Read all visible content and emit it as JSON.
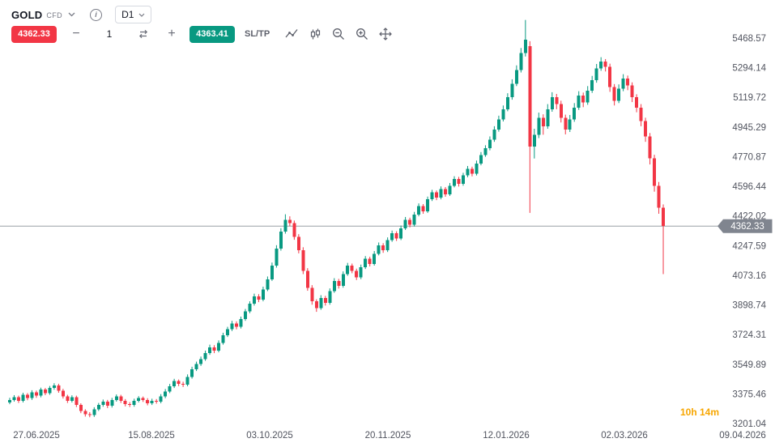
{
  "header": {
    "symbol": "GOLD",
    "instrument_type": "CFD",
    "timeframe": "D1"
  },
  "order_panel": {
    "sell_price": "4362.33",
    "buy_price": "4363.41",
    "quantity": "1",
    "sl_tp_label": "SL/TP",
    "minus_label": "−",
    "plus_label": "+"
  },
  "icons": {
    "info": "i",
    "names": [
      "chevron-down-icon",
      "info-icon",
      "swap-icon",
      "line-chart-icon",
      "candlestick-icon",
      "zoom-out-icon",
      "zoom-in-icon",
      "move-icon"
    ]
  },
  "theme": {
    "up": "#089981",
    "down": "#f23645",
    "sell_bg": "#f23645",
    "buy_bg": "#089981",
    "price_line": "#9aa0a6",
    "price_badge_bg": "#80858f",
    "timer": "#f7a600",
    "axis_text": "#50535e"
  },
  "chart_data": {
    "type": "candlestick",
    "symbol": "GOLD CFD",
    "timeframe": "D1",
    "current_price": 4362.33,
    "current_price_label": "4362.33",
    "candle_countdown": "10h 14m",
    "price_range": {
      "top": 5468.57,
      "bottom": 3201.04
    },
    "y_axis_labels": [
      "5468.57",
      "5294.14",
      "5119.72",
      "4945.29",
      "4770.87",
      "4596.44",
      "4422.02",
      "4247.59",
      "4073.16",
      "3898.74",
      "3724.31",
      "3549.89",
      "3375.46",
      "3201.04"
    ],
    "x_axis_labels": [
      "27.06.2025",
      "15.08.2025",
      "03.10.2025",
      "20.11.2025",
      "12.01.2026",
      "02.03.2026",
      "09.04.2026"
    ],
    "candles": [
      [
        3325,
        3352,
        3315,
        3340
      ],
      [
        3340,
        3368,
        3330,
        3355
      ],
      [
        3355,
        3365,
        3322,
        3335
      ],
      [
        3335,
        3382,
        3325,
        3370
      ],
      [
        3370,
        3380,
        3338,
        3350
      ],
      [
        3350,
        3397,
        3340,
        3385
      ],
      [
        3385,
        3395,
        3352,
        3365
      ],
      [
        3365,
        3412,
        3355,
        3400
      ],
      [
        3400,
        3410,
        3368,
        3380
      ],
      [
        3380,
        3422,
        3370,
        3410
      ],
      [
        3410,
        3438,
        3400,
        3425
      ],
      [
        3425,
        3435,
        3382,
        3395
      ],
      [
        3395,
        3405,
        3348,
        3360
      ],
      [
        3360,
        3370,
        3322,
        3335
      ],
      [
        3335,
        3367,
        3325,
        3355
      ],
      [
        3355,
        3365,
        3298,
        3310
      ],
      [
        3310,
        3320,
        3262,
        3275
      ],
      [
        3275,
        3285,
        3242,
        3255
      ],
      [
        3255,
        3268,
        3238,
        3250
      ],
      [
        3250,
        3297,
        3240,
        3285
      ],
      [
        3285,
        3322,
        3275,
        3310
      ],
      [
        3310,
        3342,
        3300,
        3330
      ],
      [
        3330,
        3340,
        3292,
        3305
      ],
      [
        3305,
        3352,
        3295,
        3340
      ],
      [
        3340,
        3372,
        3330,
        3360
      ],
      [
        3360,
        3370,
        3322,
        3335
      ],
      [
        3335,
        3345,
        3302,
        3315
      ],
      [
        3315,
        3327,
        3298,
        3310
      ],
      [
        3310,
        3347,
        3300,
        3335
      ],
      [
        3335,
        3362,
        3325,
        3350
      ],
      [
        3350,
        3360,
        3328,
        3340
      ],
      [
        3340,
        3350,
        3308,
        3320
      ],
      [
        3320,
        3347,
        3310,
        3335
      ],
      [
        3335,
        3345,
        3318,
        3330
      ],
      [
        3330,
        3374,
        3320,
        3360
      ],
      [
        3360,
        3404,
        3350,
        3390
      ],
      [
        3390,
        3434,
        3380,
        3420
      ],
      [
        3420,
        3464,
        3410,
        3450
      ],
      [
        3450,
        3460,
        3421,
        3435
      ],
      [
        3435,
        3447,
        3416,
        3430
      ],
      [
        3430,
        3490,
        3420,
        3475
      ],
      [
        3475,
        3535,
        3465,
        3520
      ],
      [
        3520,
        3565,
        3510,
        3550
      ],
      [
        3550,
        3595,
        3540,
        3580
      ],
      [
        3580,
        3630,
        3570,
        3615
      ],
      [
        3615,
        3665,
        3605,
        3650
      ],
      [
        3650,
        3662,
        3615,
        3630
      ],
      [
        3630,
        3690,
        3620,
        3675
      ],
      [
        3675,
        3735,
        3665,
        3720
      ],
      [
        3720,
        3770,
        3710,
        3755
      ],
      [
        3755,
        3805,
        3745,
        3790
      ],
      [
        3790,
        3802,
        3755,
        3770
      ],
      [
        3770,
        3830,
        3760,
        3815
      ],
      [
        3815,
        3875,
        3805,
        3860
      ],
      [
        3860,
        3920,
        3850,
        3905
      ],
      [
        3905,
        3965,
        3895,
        3950
      ],
      [
        3950,
        3962,
        3915,
        3930
      ],
      [
        3930,
        4006,
        3920,
        3990
      ],
      [
        3990,
        4066,
        3980,
        4050
      ],
      [
        4050,
        4148,
        4040,
        4130
      ],
      [
        4130,
        4250,
        4118,
        4230
      ],
      [
        4230,
        4350,
        4218,
        4330
      ],
      [
        4330,
        4432,
        4318,
        4400
      ],
      [
        4400,
        4420,
        4362,
        4380
      ],
      [
        4380,
        4395,
        4282,
        4300
      ],
      [
        4300,
        4315,
        4202,
        4220
      ],
      [
        4220,
        4238,
        4080,
        4100
      ],
      [
        4100,
        4115,
        3982,
        4000
      ],
      [
        4000,
        4015,
        3900,
        3920
      ],
      [
        3920,
        3932,
        3858,
        3880
      ],
      [
        3880,
        3956,
        3870,
        3940
      ],
      [
        3940,
        3952,
        3895,
        3910
      ],
      [
        3910,
        3996,
        3900,
        3980
      ],
      [
        3980,
        4056,
        3970,
        4040
      ],
      [
        4040,
        4052,
        3995,
        4010
      ],
      [
        4010,
        4096,
        4000,
        4080
      ],
      [
        4080,
        4146,
        4070,
        4130
      ],
      [
        4130,
        4142,
        4085,
        4100
      ],
      [
        4100,
        4112,
        4045,
        4060
      ],
      [
        4060,
        4136,
        4050,
        4120
      ],
      [
        4120,
        4186,
        4110,
        4170
      ],
      [
        4170,
        4182,
        4125,
        4140
      ],
      [
        4140,
        4216,
        4130,
        4200
      ],
      [
        4200,
        4266,
        4190,
        4250
      ],
      [
        4250,
        4262,
        4205,
        4220
      ],
      [
        4220,
        4296,
        4210,
        4280
      ],
      [
        4280,
        4336,
        4270,
        4320
      ],
      [
        4320,
        4332,
        4275,
        4290
      ],
      [
        4290,
        4366,
        4280,
        4350
      ],
      [
        4350,
        4416,
        4340,
        4400
      ],
      [
        4400,
        4412,
        4355,
        4370
      ],
      [
        4370,
        4446,
        4360,
        4430
      ],
      [
        4430,
        4496,
        4420,
        4480
      ],
      [
        4480,
        4492,
        4435,
        4450
      ],
      [
        4450,
        4536,
        4440,
        4520
      ],
      [
        4520,
        4576,
        4510,
        4560
      ],
      [
        4560,
        4572,
        4515,
        4530
      ],
      [
        4530,
        4596,
        4520,
        4580
      ],
      [
        4580,
        4592,
        4535,
        4550
      ],
      [
        4550,
        4616,
        4540,
        4600
      ],
      [
        4600,
        4656,
        4590,
        4640
      ],
      [
        4640,
        4652,
        4595,
        4610
      ],
      [
        4610,
        4676,
        4600,
        4660
      ],
      [
        4660,
        4716,
        4650,
        4700
      ],
      [
        4700,
        4712,
        4655,
        4670
      ],
      [
        4670,
        4748,
        4660,
        4730
      ],
      [
        4730,
        4798,
        4720,
        4780
      ],
      [
        4780,
        4838,
        4770,
        4820
      ],
      [
        4820,
        4890,
        4808,
        4870
      ],
      [
        4870,
        4950,
        4858,
        4930
      ],
      [
        4930,
        5012,
        4918,
        4990
      ],
      [
        4990,
        5072,
        4978,
        5050
      ],
      [
        5050,
        5144,
        5038,
        5120
      ],
      [
        5120,
        5226,
        5106,
        5200
      ],
      [
        5200,
        5308,
        5186,
        5280
      ],
      [
        5280,
        5410,
        5266,
        5380
      ],
      [
        5380,
        5575,
        5360,
        5460
      ],
      [
        5420,
        5450,
        4440,
        4830
      ],
      [
        4830,
        4935,
        4760,
        4900
      ],
      [
        4900,
        5030,
        4880,
        5000
      ],
      [
        5000,
        5020,
        4900,
        4950
      ],
      [
        4950,
        5080,
        4935,
        5050
      ],
      [
        5050,
        5150,
        5035,
        5120
      ],
      [
        5120,
        5140,
        5050,
        5080
      ],
      [
        5080,
        5100,
        4972,
        5000
      ],
      [
        5000,
        5018,
        4902,
        4930
      ],
      [
        4930,
        5016,
        4916,
        4990
      ],
      [
        4990,
        5086,
        4976,
        5060
      ],
      [
        5060,
        5156,
        5046,
        5130
      ],
      [
        5130,
        5148,
        5062,
        5090
      ],
      [
        5090,
        5186,
        5076,
        5160
      ],
      [
        5160,
        5246,
        5146,
        5220
      ],
      [
        5220,
        5316,
        5206,
        5290
      ],
      [
        5290,
        5356,
        5276,
        5330
      ],
      [
        5330,
        5345,
        5272,
        5300
      ],
      [
        5300,
        5318,
        5152,
        5180
      ],
      [
        5180,
        5198,
        5072,
        5100
      ],
      [
        5100,
        5196,
        5086,
        5170
      ],
      [
        5170,
        5256,
        5156,
        5230
      ],
      [
        5230,
        5248,
        5162,
        5190
      ],
      [
        5190,
        5208,
        5092,
        5120
      ],
      [
        5120,
        5138,
        5032,
        5060
      ],
      [
        5060,
        5080,
        4950,
        4980
      ],
      [
        4980,
        5000,
        4858,
        4890
      ],
      [
        4890,
        4910,
        4725,
        4760
      ],
      [
        4760,
        4782,
        4565,
        4600
      ],
      [
        4600,
        4622,
        4435,
        4470
      ],
      [
        4470,
        4490,
        4080,
        4362.33
      ]
    ]
  }
}
